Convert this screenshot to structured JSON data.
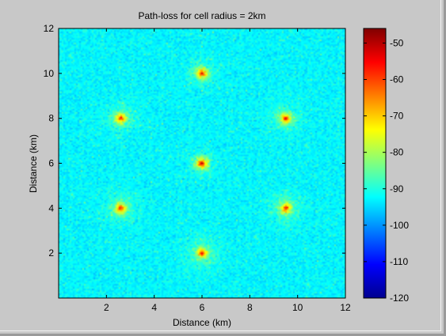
{
  "chart_data": {
    "type": "heatmap",
    "title": "Path-loss for cell radius = 2km",
    "xlabel": "Distance (km)",
    "ylabel": "Distance (km)",
    "xlim": [
      0,
      12
    ],
    "ylim": [
      0,
      12
    ],
    "xticks": [
      2,
      4,
      6,
      8,
      10,
      12
    ],
    "yticks": [
      2,
      4,
      6,
      8,
      10,
      12
    ],
    "colormap": "jet",
    "clim": [
      -120,
      -46
    ],
    "colorbar_ticks": [
      -50,
      -60,
      -70,
      -80,
      -90,
      -100,
      -110,
      -120
    ],
    "background_level": -97,
    "cell_sites": [
      {
        "x": 6.0,
        "y": 6.0,
        "peak": -47
      },
      {
        "x": 6.0,
        "y": 10.0,
        "peak": -50
      },
      {
        "x": 2.6,
        "y": 8.0,
        "peak": -50
      },
      {
        "x": 9.5,
        "y": 8.0,
        "peak": -50
      },
      {
        "x": 2.6,
        "y": 4.0,
        "peak": -50
      },
      {
        "x": 9.5,
        "y": 4.0,
        "peak": -50
      },
      {
        "x": 6.0,
        "y": 2.0,
        "peak": -50
      }
    ]
  }
}
